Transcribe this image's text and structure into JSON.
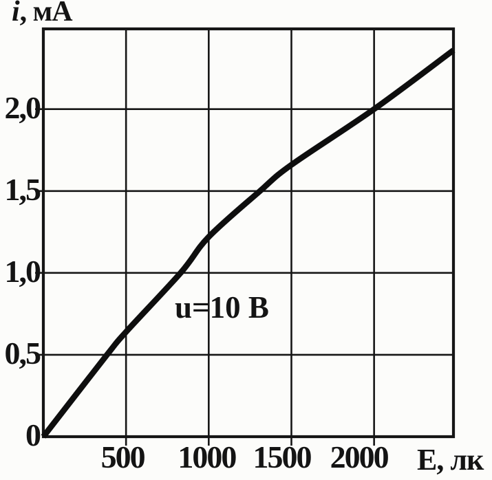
{
  "page": {
    "paper_color": "#fcfcfa",
    "ink_color": "#161616"
  },
  "chart_data": {
    "type": "line",
    "title": "",
    "ylabel": "i, мА",
    "ylabel_parts": {
      "symbol": "i",
      "rest": ", мА"
    },
    "xlabel": "Е, лк",
    "annotation": "u=10 В",
    "xlim": [
      0,
      2480
    ],
    "ylim": [
      0,
      2.49
    ],
    "grid": true,
    "legend_position": "none",
    "x_gridlines": [
      500,
      1000,
      1500,
      2000
    ],
    "y_gridlines": [
      0.5,
      1.0,
      1.5,
      2.0
    ],
    "x_ticks": [
      {
        "value": 500,
        "label": "500"
      },
      {
        "value": 1000,
        "label": "1000"
      },
      {
        "value": 1500,
        "label": "1500"
      },
      {
        "value": 2000,
        "label": "2000"
      }
    ],
    "y_ticks": [
      {
        "value": 0,
        "label": "0"
      },
      {
        "value": 0.5,
        "label": "0,5"
      },
      {
        "value": 1.0,
        "label": "1,0"
      },
      {
        "value": 1.5,
        "label": "1,5"
      },
      {
        "value": 2.0,
        "label": "2,0"
      }
    ],
    "series": [
      {
        "name": "u=10 В",
        "color": "#0e0e0e",
        "points": [
          [
            0,
            0
          ],
          [
            385,
            0.5
          ],
          [
            500,
            0.64
          ],
          [
            830,
            1.0
          ],
          [
            1000,
            1.22
          ],
          [
            1310,
            1.5
          ],
          [
            1500,
            1.66
          ],
          [
            2000,
            2.0
          ],
          [
            2480,
            2.36
          ]
        ]
      }
    ]
  }
}
